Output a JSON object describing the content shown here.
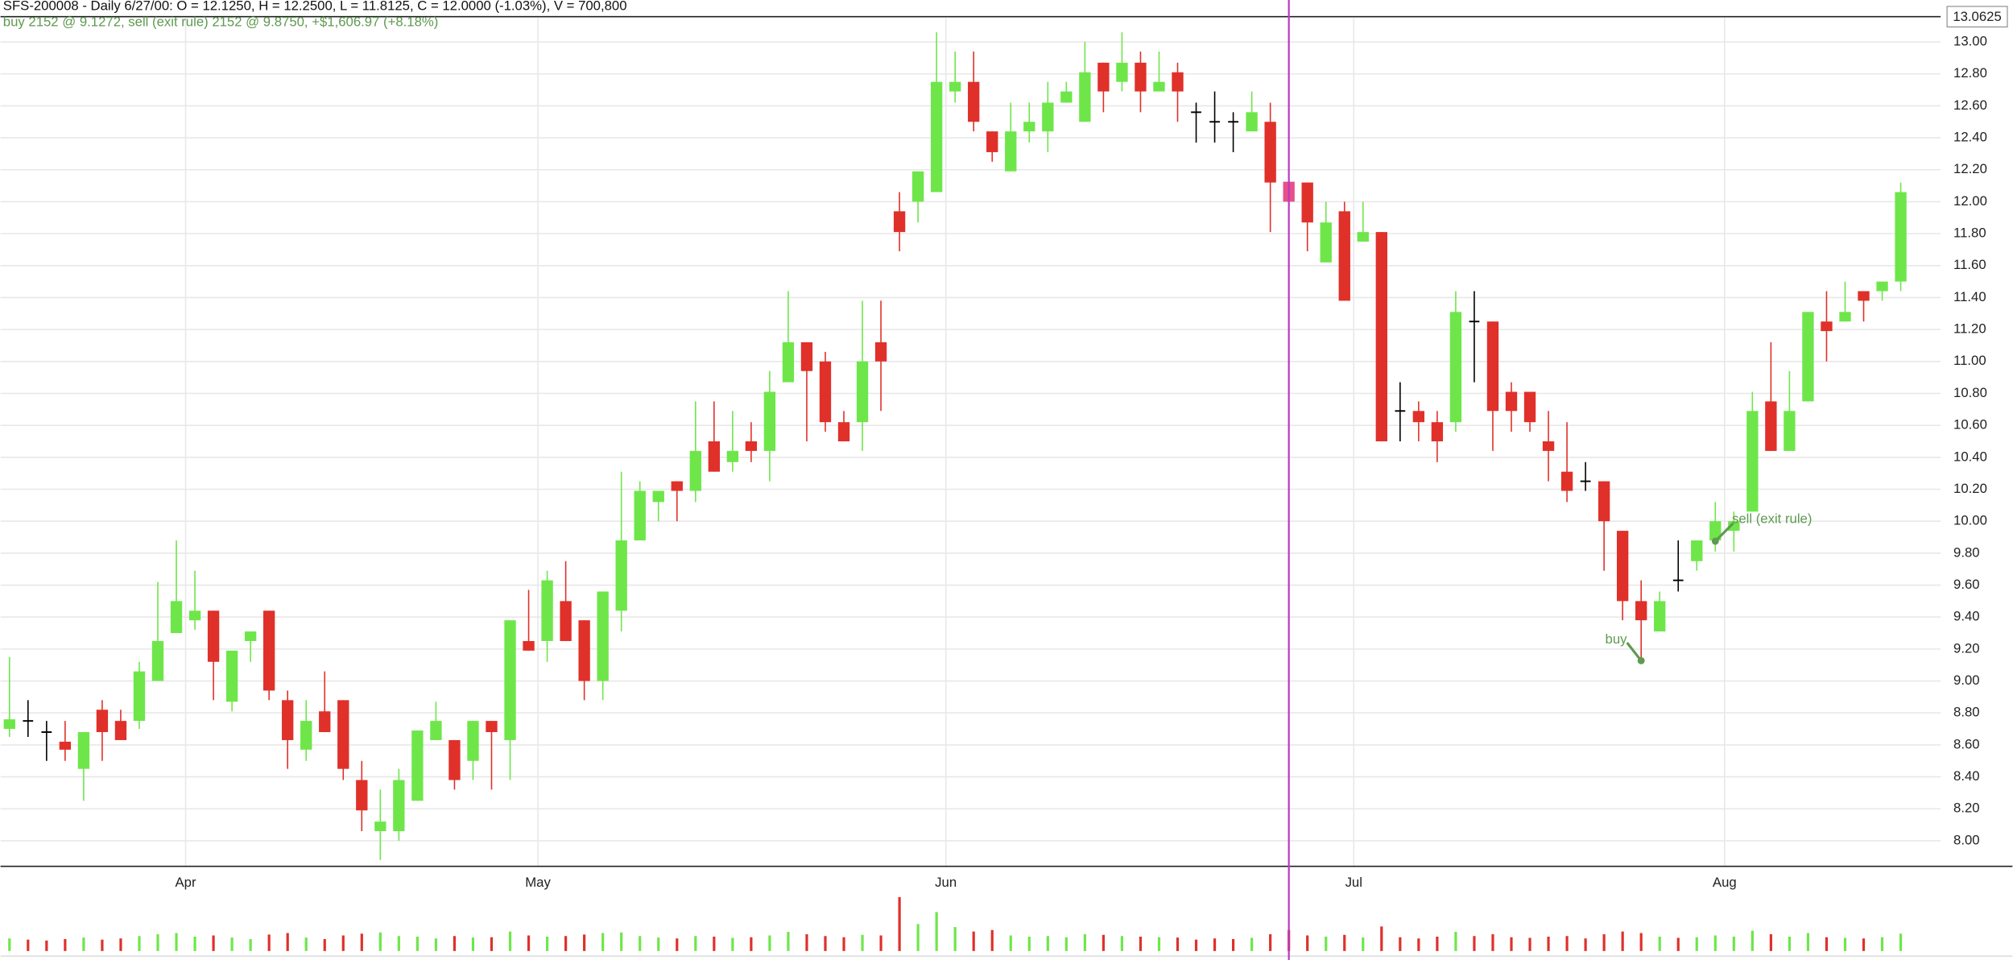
{
  "chart_data": {
    "type": "candlestick",
    "title": "SFS-200008 - Daily 6/27/00:  O = 12.1250,  H = 12.2500,  L = 11.8125,  C = 12.0000 (-1.03%), V = 700,800",
    "subtitle": "buy 2152 @ 9.1272, sell (exit rule) 2152 @ 9.8750, +$1,606.97 (+8.18%)",
    "price_marker": 13.0625,
    "categories": [
      null,
      null,
      null,
      null,
      null,
      null,
      null,
      null,
      null,
      null,
      "Apr",
      null,
      null,
      null,
      null,
      null,
      null,
      null,
      null,
      null,
      null,
      null,
      null,
      null,
      null,
      null,
      null,
      null,
      null,
      "May",
      null,
      null,
      null,
      null,
      null,
      null,
      null,
      null,
      null,
      null,
      null,
      null,
      null,
      null,
      null,
      null,
      null,
      null,
      null,
      null,
      null,
      "Jun",
      null,
      null,
      null,
      null,
      null,
      null,
      null,
      null,
      null,
      null,
      null,
      null,
      null,
      null,
      null,
      null,
      null,
      null,
      null,
      null,
      null,
      "Jul",
      null,
      null,
      null,
      null,
      null,
      null,
      null,
      null,
      null,
      null,
      null,
      null,
      null,
      null,
      null,
      null,
      null,
      null,
      null,
      "Aug",
      null,
      null,
      null,
      null,
      null,
      null,
      null,
      null,
      null
    ],
    "open": [
      8.7,
      8.75,
      8.68,
      8.62,
      8.45,
      8.82,
      8.75,
      8.75,
      9.0,
      9.3,
      9.38,
      9.44,
      8.87,
      9.25,
      9.44,
      8.88,
      8.57,
      8.81,
      8.88,
      8.38,
      8.06,
      8.06,
      8.25,
      8.63,
      8.63,
      8.5,
      8.75,
      8.63,
      9.25,
      9.25,
      9.5,
      9.38,
      9.0,
      9.44,
      9.88,
      10.12,
      10.25,
      10.19,
      10.5,
      10.37,
      10.5,
      10.44,
      10.87,
      11.12,
      11.0,
      10.62,
      10.62,
      11.12,
      11.94,
      12.0,
      12.06,
      12.69,
      12.75,
      12.44,
      12.19,
      12.44,
      12.44,
      12.62,
      12.5,
      12.87,
      12.75,
      12.87,
      12.69,
      12.81,
      12.56,
      12.5,
      12.5,
      12.44,
      12.5,
      12.125,
      12.12,
      11.62,
      11.94,
      11.75,
      11.81,
      10.69,
      10.69,
      10.62,
      10.62,
      11.25,
      11.25,
      10.81,
      10.81,
      10.5,
      10.31,
      10.25,
      10.25,
      9.94,
      9.5,
      9.31,
      9.63,
      9.75,
      9.88,
      9.94,
      10.06,
      10.75,
      10.44,
      10.75,
      11.25,
      11.25,
      11.44,
      11.44,
      11.5
    ],
    "high": [
      9.15,
      8.88,
      8.75,
      8.75,
      8.68,
      8.88,
      8.82,
      9.12,
      9.62,
      9.88,
      9.69,
      9.44,
      9.19,
      9.31,
      9.44,
      8.94,
      8.88,
      9.06,
      8.88,
      8.5,
      8.32,
      8.45,
      8.69,
      8.87,
      8.63,
      8.75,
      8.75,
      9.38,
      9.57,
      9.69,
      9.75,
      9.38,
      9.56,
      10.31,
      10.25,
      10.19,
      10.25,
      10.75,
      10.75,
      10.69,
      10.62,
      10.94,
      11.44,
      11.12,
      11.06,
      10.69,
      11.38,
      11.38,
      12.06,
      12.19,
      13.06,
      12.94,
      12.94,
      12.44,
      12.62,
      12.62,
      12.75,
      12.75,
      13.0,
      12.87,
      13.06,
      12.94,
      12.94,
      12.87,
      12.62,
      12.69,
      12.56,
      12.69,
      12.62,
      12.25,
      12.12,
      12.0,
      12.0,
      12.0,
      11.81,
      10.87,
      10.75,
      10.69,
      11.44,
      11.44,
      11.25,
      10.87,
      10.81,
      10.69,
      10.62,
      10.37,
      10.25,
      9.94,
      9.63,
      9.56,
      9.88,
      9.88,
      10.12,
      10.06,
      10.81,
      11.12,
      10.94,
      11.31,
      11.44,
      11.5,
      11.44,
      11.5,
      12.12
    ],
    "low": [
      8.65,
      8.65,
      8.5,
      8.5,
      8.25,
      8.5,
      8.63,
      8.7,
      9.0,
      9.3,
      9.32,
      8.88,
      8.81,
      9.12,
      8.88,
      8.45,
      8.5,
      8.68,
      8.38,
      8.06,
      7.88,
      8.0,
      8.25,
      8.63,
      8.32,
      8.38,
      8.32,
      8.38,
      9.19,
      9.12,
      9.25,
      8.88,
      8.88,
      9.31,
      9.88,
      10.0,
      10.0,
      10.12,
      10.31,
      10.31,
      10.37,
      10.25,
      10.87,
      10.5,
      10.56,
      10.5,
      10.44,
      10.69,
      11.69,
      11.87,
      12.06,
      12.62,
      12.44,
      12.25,
      12.19,
      12.37,
      12.31,
      12.62,
      12.5,
      12.56,
      12.69,
      12.56,
      12.69,
      12.5,
      12.37,
      12.37,
      12.31,
      12.44,
      11.81,
      11.8125,
      11.69,
      11.62,
      11.38,
      11.75,
      10.5,
      10.5,
      10.5,
      10.37,
      10.56,
      10.87,
      10.44,
      10.56,
      10.56,
      10.25,
      10.12,
      10.19,
      9.69,
      9.38,
      9.12,
      9.31,
      9.56,
      9.69,
      9.81,
      9.81,
      10.06,
      10.44,
      10.44,
      10.75,
      11.0,
      11.25,
      11.25,
      11.38,
      11.44
    ],
    "close": [
      8.76,
      8.75,
      8.68,
      8.57,
      8.68,
      8.68,
      8.63,
      9.06,
      9.25,
      9.5,
      9.44,
      9.12,
      9.19,
      9.31,
      8.94,
      8.63,
      8.75,
      8.68,
      8.45,
      8.19,
      8.12,
      8.38,
      8.69,
      8.75,
      8.38,
      8.75,
      8.68,
      9.38,
      9.19,
      9.63,
      9.25,
      9.0,
      9.56,
      9.88,
      10.19,
      10.19,
      10.19,
      10.44,
      10.31,
      10.44,
      10.44,
      10.81,
      11.12,
      10.94,
      10.62,
      10.5,
      11.0,
      11.0,
      11.81,
      12.19,
      12.75,
      12.75,
      12.5,
      12.31,
      12.44,
      12.5,
      12.62,
      12.69,
      12.81,
      12.69,
      12.87,
      12.69,
      12.75,
      12.69,
      12.56,
      12.5,
      12.5,
      12.56,
      12.12,
      12.0,
      11.87,
      11.87,
      11.38,
      11.81,
      10.5,
      10.69,
      10.62,
      10.5,
      11.31,
      11.25,
      10.69,
      10.69,
      10.62,
      10.44,
      10.19,
      10.25,
      10.0,
      9.5,
      9.38,
      9.5,
      9.63,
      9.88,
      10.0,
      10.0,
      10.69,
      10.44,
      10.69,
      11.31,
      11.19,
      11.31,
      11.38,
      11.5,
      12.06
    ],
    "volume": [
      420000,
      380000,
      350000,
      400000,
      450000,
      380000,
      420000,
      500000,
      560000,
      600000,
      480000,
      520000,
      450000,
      400000,
      550000,
      600000,
      450000,
      400000,
      520000,
      580000,
      620000,
      500000,
      480000,
      420000,
      500000,
      450000,
      460000,
      650000,
      520000,
      480000,
      500000,
      550000,
      600000,
      620000,
      500000,
      450000,
      420000,
      500000,
      480000,
      440000,
      460000,
      520000,
      640000,
      560000,
      500000,
      460000,
      540000,
      520000,
      1800000,
      900000,
      1300000,
      800000,
      650000,
      700000,
      520000,
      480000,
      500000,
      460000,
      560000,
      540000,
      500000,
      480000,
      460000,
      450000,
      380000,
      420000,
      400000,
      440000,
      560000,
      700800,
      520000,
      480000,
      540000,
      450000,
      820000,
      460000,
      420000,
      480000,
      640000,
      500000,
      560000,
      460000,
      440000,
      480000,
      500000,
      420000,
      560000,
      650000,
      600000,
      480000,
      440000,
      460000,
      520000,
      480000,
      680000,
      560000,
      480000,
      600000,
      460000,
      440000,
      420000,
      460000,
      580000
    ],
    "up_color": "#6ee64a",
    "down_color": "#e0302a",
    "doji_color": "#000000",
    "annotation_color": "#5e9a50",
    "annotations": [
      {
        "text": "buy",
        "at": 88,
        "price": 9.1272
      },
      {
        "text": "sell (exit rule)",
        "at": 92,
        "price": 9.875
      }
    ],
    "ylim": [
      7.84,
      13.15
    ],
    "yticks": [
      {
        "value": 8,
        "label": "8.00"
      },
      {
        "value": 8.2,
        "label": "8.20"
      },
      {
        "value": 8.4,
        "label": "8.40"
      },
      {
        "value": 8.6,
        "label": "8.60"
      },
      {
        "value": 8.8,
        "label": "8.80"
      },
      {
        "value": 9,
        "label": "9.00"
      },
      {
        "value": 9.2,
        "label": "9.20"
      },
      {
        "value": 9.4,
        "label": "9.40"
      },
      {
        "value": 9.6,
        "label": "9.60"
      },
      {
        "value": 9.8,
        "label": "9.80"
      },
      {
        "value": 10,
        "label": "10.00"
      },
      {
        "value": 10.2,
        "label": "10.20"
      },
      {
        "value": 10.4,
        "label": "10.40"
      },
      {
        "value": 10.6,
        "label": "10.60"
      },
      {
        "value": 10.8,
        "label": "10.80"
      },
      {
        "value": 11,
        "label": "11.00"
      },
      {
        "value": 11.2,
        "label": "11.20"
      },
      {
        "value": 11.4,
        "label": "11.40"
      },
      {
        "value": 11.6,
        "label": "11.60"
      },
      {
        "value": 11.8,
        "label": "11.80"
      },
      {
        "value": 12,
        "label": "12.00"
      },
      {
        "value": 12.2,
        "label": "12.20"
      },
      {
        "value": 12.4,
        "label": "12.40"
      },
      {
        "value": 12.6,
        "label": "12.60"
      },
      {
        "value": 12.8,
        "label": "12.80"
      },
      {
        "value": 13,
        "label": "13.00"
      }
    ],
    "grid": true
  }
}
